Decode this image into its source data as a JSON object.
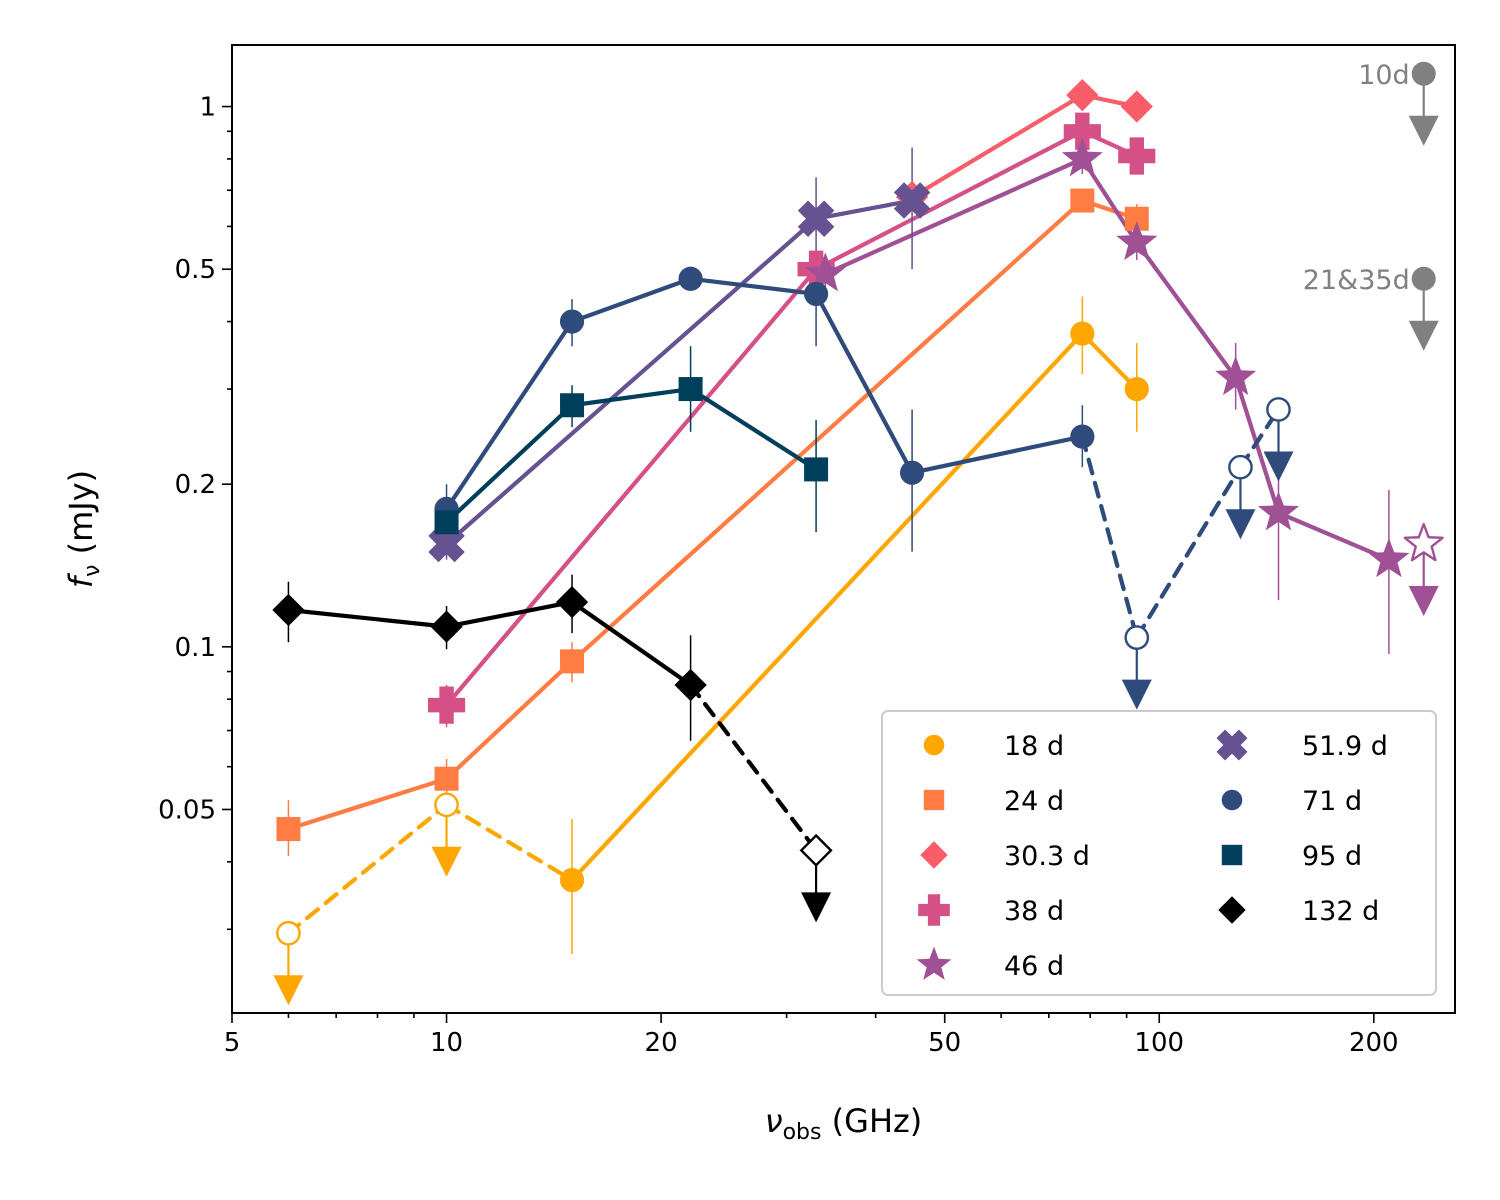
{
  "chart_data": {
    "type": "scatter",
    "title": "",
    "xlabel": "ν_obs (GHz)",
    "xlabel_main": "ν",
    "xlabel_sub": "obs",
    "xlabel_rest": " (GHz)",
    "ylabel": "f_ν (mJy)",
    "ylabel_main": "f",
    "ylabel_sub": "ν",
    "ylabel_rest": " (mJy)",
    "xscale": "log",
    "yscale": "log",
    "xlim": [
      5,
      260
    ],
    "ylim": [
      0.021,
      1.3
    ],
    "x_ticks": [
      {
        "value": 5,
        "label": "5"
      },
      {
        "value": 10,
        "label": "10"
      },
      {
        "value": 20,
        "label": "20"
      },
      {
        "value": 50,
        "label": "50"
      },
      {
        "value": 100,
        "label": "100"
      },
      {
        "value": 200,
        "label": "200"
      }
    ],
    "y_ticks": [
      {
        "value": 0.05,
        "label": "0.05"
      },
      {
        "value": 0.1,
        "label": "0.1"
      },
      {
        "value": 0.2,
        "label": "0.2"
      },
      {
        "value": 0.5,
        "label": "0.5"
      },
      {
        "value": 1,
        "label": "1"
      }
    ],
    "legend_position": "bottom-right",
    "legend_columns": 2,
    "series": [
      {
        "name": "18 d",
        "color": "#FFA600",
        "marker": "circle",
        "points": [
          {
            "x": 6,
            "y": 0.0295,
            "upper": true
          },
          {
            "x": 10,
            "y": 0.051,
            "upper": true
          },
          {
            "x": 15,
            "y": 0.037,
            "err": [
              0.01,
              0.011
            ]
          },
          {
            "x": 78,
            "y": 0.38,
            "err": [
              0.06,
              0.065
            ]
          },
          {
            "x": 93,
            "y": 0.3,
            "err": [
              0.05,
              0.065
            ]
          }
        ],
        "segments": [
          {
            "from": 0,
            "to": 1,
            "style": "dashed"
          },
          {
            "from": 1,
            "to": 2,
            "style": "dashed"
          },
          {
            "from": 2,
            "to": 3,
            "style": "solid"
          },
          {
            "from": 3,
            "to": 4,
            "style": "solid"
          }
        ]
      },
      {
        "name": "24 d",
        "color": "#FF7C43",
        "marker": "square",
        "points": [
          {
            "x": 6,
            "y": 0.046,
            "err": [
              0.005,
              0.006
            ]
          },
          {
            "x": 10,
            "y": 0.057,
            "err": [
              0.004,
              0.005
            ]
          },
          {
            "x": 15,
            "y": 0.094,
            "err": [
              0.008,
              0.008
            ]
          },
          {
            "x": 78,
            "y": 0.67,
            "err": [
              0.03,
              0.03
            ]
          },
          {
            "x": 93,
            "y": 0.62,
            "err": [
              0.04,
              0.04
            ]
          }
        ],
        "segments": [
          {
            "from": 0,
            "to": 1,
            "style": "solid"
          },
          {
            "from": 1,
            "to": 2,
            "style": "solid"
          },
          {
            "from": 2,
            "to": 3,
            "style": "solid"
          },
          {
            "from": 3,
            "to": 4,
            "style": "solid"
          }
        ]
      },
      {
        "name": "30.3 d",
        "color": "#F95D6A",
        "marker": "diamond",
        "points": [
          {
            "x": 45,
            "y": 0.68
          },
          {
            "x": 78,
            "y": 1.05
          },
          {
            "x": 93,
            "y": 1.0
          }
        ],
        "segments": [
          {
            "from": 0,
            "to": 1,
            "style": "solid"
          },
          {
            "from": 1,
            "to": 2,
            "style": "solid"
          }
        ]
      },
      {
        "name": "38 d",
        "color": "#D45087",
        "marker": "plus",
        "points": [
          {
            "x": 10,
            "y": 0.078,
            "err": [
              0.007,
              0.007
            ]
          },
          {
            "x": 33,
            "y": 0.5,
            "err": [
              0.04,
              0.04
            ]
          },
          {
            "x": 78,
            "y": 0.9,
            "err": [
              0.05,
              0.05
            ]
          },
          {
            "x": 93,
            "y": 0.81,
            "err": [
              0.04,
              0.04
            ]
          }
        ],
        "segments": [
          {
            "from": 0,
            "to": 1,
            "style": "solid"
          },
          {
            "from": 1,
            "to": 2,
            "style": "solid"
          },
          {
            "from": 2,
            "to": 3,
            "style": "solid"
          }
        ]
      },
      {
        "name": "46 d",
        "color": "#A05195",
        "marker": "star",
        "points": [
          {
            "x": 34,
            "y": 0.49,
            "err": [
              0.04,
              0.04
            ]
          },
          {
            "x": 78,
            "y": 0.8,
            "err": [
              0.05,
              0.05
            ]
          },
          {
            "x": 93,
            "y": 0.56,
            "err": [
              0.04,
              0.04
            ]
          },
          {
            "x": 128,
            "y": 0.315,
            "err": [
              0.04,
              0.05
            ]
          },
          {
            "x": 147,
            "y": 0.177,
            "err": [
              0.055,
              0.05
            ]
          },
          {
            "x": 210,
            "y": 0.145,
            "err": [
              0.048,
              0.05
            ]
          },
          {
            "x": 235,
            "y": 0.155,
            "upper": true
          }
        ],
        "segments": [
          {
            "from": 0,
            "to": 1,
            "style": "solid"
          },
          {
            "from": 1,
            "to": 2,
            "style": "solid"
          },
          {
            "from": 2,
            "to": 3,
            "style": "solid"
          },
          {
            "from": 3,
            "to": 4,
            "style": "solid"
          },
          {
            "from": 4,
            "to": 5,
            "style": "solid"
          }
        ]
      },
      {
        "name": "51.9 d",
        "color": "#665191",
        "marker": "x",
        "points": [
          {
            "x": 10,
            "y": 0.155,
            "err": [
              0.01,
              0.01
            ]
          },
          {
            "x": 33,
            "y": 0.62,
            "err": [
              0.12,
              0.12
            ]
          },
          {
            "x": 45,
            "y": 0.67,
            "err": [
              0.17,
              0.17
            ]
          }
        ],
        "segments": [
          {
            "from": 0,
            "to": 1,
            "style": "solid"
          },
          {
            "from": 1,
            "to": 2,
            "style": "solid"
          }
        ]
      },
      {
        "name": "71 d",
        "color": "#2F4B7C",
        "marker": "circle",
        "points": [
          {
            "x": 10,
            "y": 0.18,
            "err": [
              0.02,
              0.02
            ]
          },
          {
            "x": 15,
            "y": 0.4,
            "err": [
              0.04,
              0.04
            ]
          },
          {
            "x": 22,
            "y": 0.48
          },
          {
            "x": 33,
            "y": 0.45,
            "err": [
              0.09,
              0.09
            ]
          },
          {
            "x": 45,
            "y": 0.21,
            "err": [
              0.06,
              0.065
            ]
          },
          {
            "x": 78,
            "y": 0.245,
            "err": [
              0.03,
              0.035
            ]
          },
          {
            "x": 93,
            "y": 0.104,
            "upper": true
          },
          {
            "x": 130,
            "y": 0.215,
            "upper": true
          },
          {
            "x": 147,
            "y": 0.275,
            "upper": true
          }
        ],
        "segments": [
          {
            "from": 0,
            "to": 1,
            "style": "solid"
          },
          {
            "from": 1,
            "to": 2,
            "style": "solid"
          },
          {
            "from": 2,
            "to": 3,
            "style": "solid"
          },
          {
            "from": 3,
            "to": 4,
            "style": "solid"
          },
          {
            "from": 4,
            "to": 5,
            "style": "solid"
          },
          {
            "from": 5,
            "to": 6,
            "style": "dashed"
          },
          {
            "from": 6,
            "to": 7,
            "style": "dashed"
          },
          {
            "from": 7,
            "to": 8,
            "style": "dashed"
          }
        ]
      },
      {
        "name": "95 d",
        "color": "#003F5C",
        "marker": "square",
        "points": [
          {
            "x": 10,
            "y": 0.17,
            "err": [
              0.015,
              0.015
            ]
          },
          {
            "x": 15,
            "y": 0.28,
            "err": [
              0.025,
              0.025
            ]
          },
          {
            "x": 22,
            "y": 0.3,
            "err": [
              0.05,
              0.06
            ]
          },
          {
            "x": 33,
            "y": 0.213,
            "err": [
              0.05,
              0.05
            ]
          }
        ],
        "segments": [
          {
            "from": 0,
            "to": 1,
            "style": "solid"
          },
          {
            "from": 1,
            "to": 2,
            "style": "solid"
          },
          {
            "from": 2,
            "to": 3,
            "style": "solid"
          }
        ]
      },
      {
        "name": "132 d",
        "color": "#000000",
        "marker": "diamond",
        "points": [
          {
            "x": 6,
            "y": 0.117,
            "err": [
              0.015,
              0.015
            ]
          },
          {
            "x": 10,
            "y": 0.109,
            "err": [
              0.01,
              0.01
            ]
          },
          {
            "x": 15,
            "y": 0.121,
            "err": [
              0.015,
              0.015
            ]
          },
          {
            "x": 22,
            "y": 0.085,
            "err": [
              0.018,
              0.02
            ]
          },
          {
            "x": 33,
            "y": 0.042,
            "upper": true
          }
        ],
        "segments": [
          {
            "from": 0,
            "to": 1,
            "style": "solid"
          },
          {
            "from": 1,
            "to": 2,
            "style": "solid"
          },
          {
            "from": 2,
            "to": 3,
            "style": "solid"
          },
          {
            "from": 3,
            "to": 4,
            "style": "dashed"
          }
        ]
      }
    ],
    "annotations": [
      {
        "text": "10d",
        "x": 235,
        "y": 1.15,
        "color": "#808080",
        "upper": true
      },
      {
        "text": "21&35d",
        "x": 235,
        "y": 0.48,
        "color": "#808080",
        "upper": true
      }
    ]
  }
}
